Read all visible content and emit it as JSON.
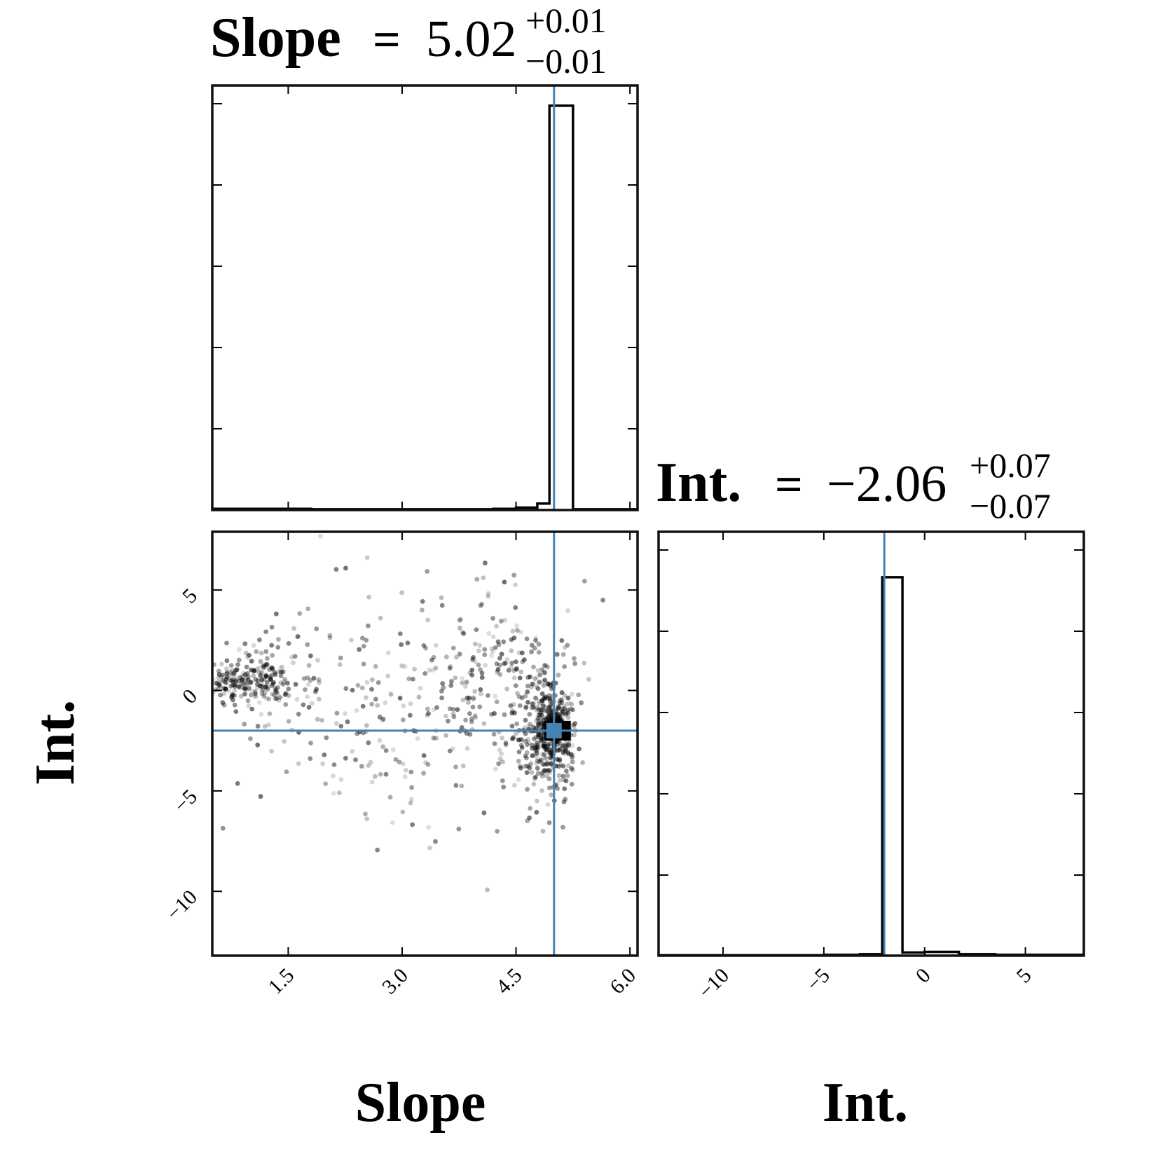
{
  "chart_data": [
    {
      "type": "histogram",
      "panel": "slope-marginal",
      "title": {
        "label": "Slope",
        "equals": "=",
        "value": "5.02",
        "plus": "+0.01",
        "minus": "−0.01"
      },
      "xlim": [
        0.5,
        6.1
      ],
      "truth": 5.0,
      "bins": [
        {
          "x0": 0.5,
          "x1": 1.8,
          "count": 1.5
        },
        {
          "x0": 1.8,
          "x1": 4.2,
          "count": 1.0
        },
        {
          "x0": 4.2,
          "x1": 4.5,
          "count": 1.5
        },
        {
          "x0": 4.5,
          "x1": 4.78,
          "count": 3
        },
        {
          "x0": 4.78,
          "x1": 4.94,
          "count": 8
        },
        {
          "x0": 4.94,
          "x1": 5.25,
          "count": 500
        },
        {
          "x0": 5.25,
          "x1": 6.1,
          "count": 1
        }
      ],
      "ylim": [
        0,
        525
      ]
    },
    {
      "type": "scatter",
      "panel": "slope-int-joint",
      "xlim": [
        0.5,
        6.1
      ],
      "ylim": [
        -13.2,
        7.9
      ],
      "xticks": [
        "1.5",
        "3.0",
        "4.5",
        "6.0"
      ],
      "xtick_values": [
        1.5,
        3.0,
        4.5,
        6.0
      ],
      "yticks": [
        "5",
        "0",
        "−5",
        "−10"
      ],
      "ytick_values": [
        5,
        0,
        -5,
        -10
      ],
      "xlabel": "Slope",
      "ylabel": "Int.",
      "truth": {
        "x": 5.0,
        "y": -2.0
      },
      "clusters": [
        {
          "cx": 0.9,
          "cy": 0.5,
          "sx": 0.35,
          "sy": 0.6,
          "n": 180
        },
        {
          "cx": 1.2,
          "cy": 0.8,
          "sx": 0.25,
          "sy": 0.9,
          "n": 60
        },
        {
          "cx": 3.0,
          "cy": 0.0,
          "sx": 1.1,
          "sy": 2.2,
          "n": 220
        },
        {
          "cx": 3.2,
          "cy": -4.0,
          "sx": 1.0,
          "sy": 2.5,
          "n": 70
        },
        {
          "cx": 4.4,
          "cy": 0.5,
          "sx": 0.4,
          "sy": 2.5,
          "n": 160
        },
        {
          "cx": 4.95,
          "cy": -2.0,
          "sx": 0.18,
          "sy": 1.4,
          "n": 380
        },
        {
          "cx": 5.0,
          "cy": -2.0,
          "sx": 0.06,
          "sy": 0.35,
          "n": 240
        }
      ]
    },
    {
      "type": "histogram",
      "panel": "int-marginal",
      "title": {
        "label": "Int.",
        "equals": "=",
        "value": "−2.06",
        "plus": "+0.07",
        "minus": "−0.07"
      },
      "xlim": [
        -13.2,
        7.9
      ],
      "xticks": [
        "−10",
        "−5",
        "0",
        "5"
      ],
      "xtick_values": [
        -10,
        -5,
        0,
        5
      ],
      "xlabel": "Int.",
      "truth": -2.0,
      "bins": [
        {
          "x0": -13.2,
          "x1": -5.0,
          "count": 0.5
        },
        {
          "x0": -5.0,
          "x1": -3.2,
          "count": 1
        },
        {
          "x0": -3.2,
          "x1": -2.1,
          "count": 2
        },
        {
          "x0": -2.1,
          "x1": -1.1,
          "count": 500
        },
        {
          "x0": -1.1,
          "x1": 0.0,
          "count": 4
        },
        {
          "x0": 0.0,
          "x1": 1.7,
          "count": 5
        },
        {
          "x0": 1.7,
          "x1": 3.5,
          "count": 2
        },
        {
          "x0": 3.5,
          "x1": 7.9,
          "count": 1
        }
      ],
      "ylim": [
        0,
        500
      ]
    }
  ],
  "colors": {
    "truth": "#4682b4",
    "ink": "#000000",
    "frame": "#111111"
  }
}
